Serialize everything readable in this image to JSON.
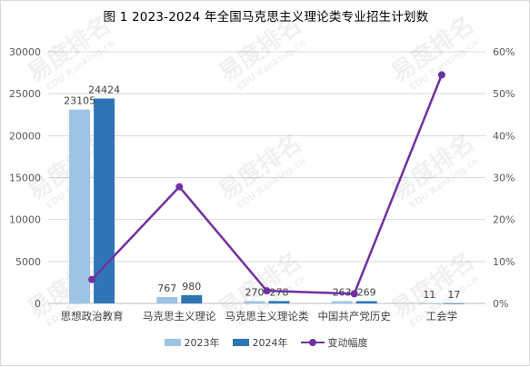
{
  "chart_data": {
    "type": "bar",
    "title": "图 1 2023-2024 年全国马克思主义理论类专业招生计划数",
    "categories": [
      "思想政治教育",
      "马克思主义理论",
      "马克思主义理论类",
      "中国共产党历史",
      "工会学"
    ],
    "series": [
      {
        "name": "2023年",
        "type": "bar",
        "axis": "left",
        "color": "#9dc3e6",
        "values": [
          23105,
          767,
          270,
          263,
          11
        ]
      },
      {
        "name": "2024年",
        "type": "bar",
        "axis": "left",
        "color": "#2e75b6",
        "values": [
          24424,
          980,
          278,
          269,
          17
        ]
      },
      {
        "name": "变动幅度",
        "type": "line",
        "axis": "right",
        "color": "#7030a0",
        "values": [
          5.7,
          27.8,
          3.0,
          2.3,
          54.5
        ]
      }
    ],
    "ylim": [
      0,
      30000
    ],
    "yticks": [
      "0",
      "5000",
      "10000",
      "15000",
      "20000",
      "25000",
      "30000"
    ],
    "y2lim": [
      0,
      60
    ],
    "y2ticks": [
      "0%",
      "10%",
      "20%",
      "30%",
      "40%",
      "50%",
      "60%"
    ],
    "data_labels": [
      [
        "23105",
        "767",
        "270",
        "263",
        "11"
      ],
      [
        "24424",
        "980",
        "278",
        "269",
        "17"
      ]
    ],
    "legend": [
      "2023年",
      "2024年",
      "变动幅度"
    ],
    "legend_position": "bottom",
    "grid": true,
    "watermark": [
      "易度排名",
      "EDU Ranking.cn"
    ]
  }
}
